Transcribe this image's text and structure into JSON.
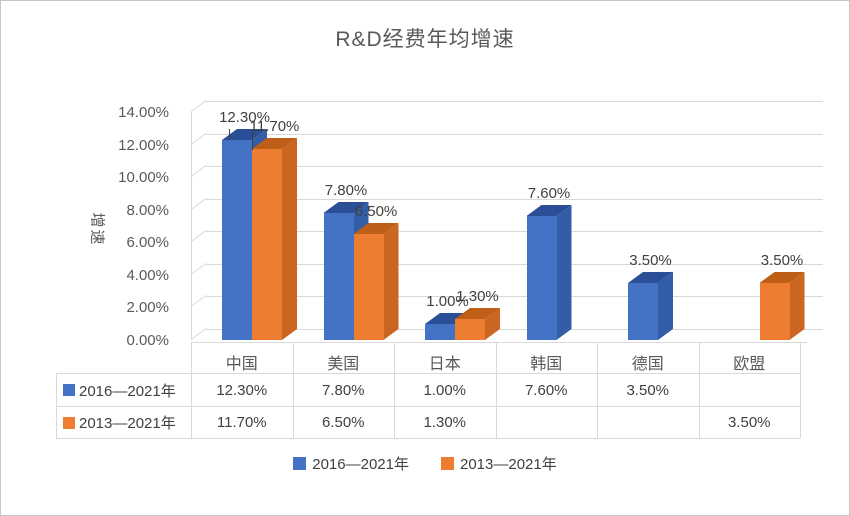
{
  "chart_data": {
    "type": "bar",
    "chart_style": "3d-clustered-column",
    "title": "R&D经费年均增速",
    "ylabel": "增速",
    "xlabel": "",
    "ylim": [
      0,
      14
    ],
    "ytick_labels": [
      "0.00%",
      "2.00%",
      "4.00%",
      "6.00%",
      "8.00%",
      "10.00%",
      "12.00%",
      "14.00%"
    ],
    "grid": true,
    "legend_position": "bottom",
    "data_table_shown": true,
    "categories": [
      "中国",
      "美国",
      "日本",
      "韩国",
      "德国",
      "欧盟"
    ],
    "series": [
      {
        "name": "2016—2021年",
        "color_front": "#4472C4",
        "color_top": "#2A4F97",
        "color_side": "#345DA8",
        "values": [
          12.3,
          7.8,
          1.0,
          7.6,
          3.5,
          null
        ],
        "labels": [
          "12.30%",
          "7.80%",
          "1.00%",
          "7.60%",
          "3.50%",
          ""
        ]
      },
      {
        "name": "2013—2021年",
        "color_front": "#ED7D31",
        "color_top": "#BF5E17",
        "color_side": "#CB6522",
        "values": [
          11.7,
          6.5,
          1.3,
          null,
          null,
          3.5
        ],
        "labels": [
          "11.70%",
          "6.50%",
          "1.30%",
          "",
          "",
          "3.50%"
        ]
      }
    ],
    "colors": {
      "gridline": "#D9D9D9",
      "axis_text": "#595959",
      "label_text": "#404040",
      "table_border": "#D9D9D9"
    }
  }
}
